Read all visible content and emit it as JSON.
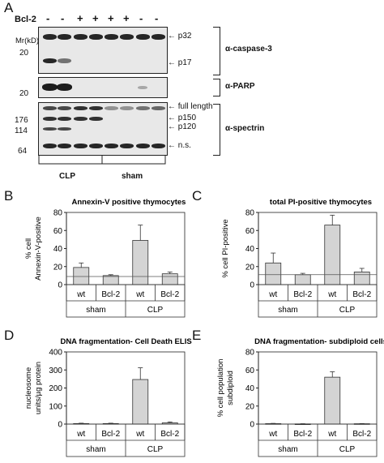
{
  "panelA": {
    "letter": "A",
    "bcl2_label": "Bcl-2",
    "lane_signs": [
      "-",
      "-",
      "+",
      "+",
      "+",
      "+",
      "-",
      "-"
    ],
    "mr_label": "Mr(kD)",
    "caspase": {
      "label": "α-caspase-3",
      "mw": [
        "20"
      ],
      "arrows": [
        "p32",
        "p17"
      ]
    },
    "parp": {
      "label": "α-PARP",
      "mw": [
        "20"
      ]
    },
    "spectrin": {
      "label": "α-spectrin",
      "mw": [
        "176",
        "114",
        "64"
      ],
      "arrows": [
        "full length",
        "p150",
        "p120",
        "n.s."
      ]
    },
    "groups": [
      "CLP",
      "sham"
    ]
  },
  "charts": [
    {
      "letter": "B",
      "chart_data": {
        "type": "bar",
        "title": "Annexin-V positive thymocytes",
        "ylabel": "% cell Annexin-V-positive",
        "ylabel_lines": [
          "% cell",
          "Annexin-V-positive"
        ],
        "categories": [
          "wt",
          "Bcl-2",
          "wt",
          "Bcl-2"
        ],
        "groups": [
          "sham",
          "CLP"
        ],
        "values": [
          19,
          10,
          49,
          12
        ],
        "errors": [
          5,
          1,
          17,
          2
        ],
        "baseline": 9,
        "ylim": [
          0,
          80
        ],
        "yticks": [
          "0",
          "20",
          "40",
          "60",
          "80"
        ]
      }
    },
    {
      "letter": "C",
      "chart_data": {
        "type": "bar",
        "title": "total PI-positive thymocytes",
        "ylabel": "% cell PI-positive",
        "ylabel_lines": [
          "% cell PI-positive"
        ],
        "categories": [
          "wt",
          "Bcl-2",
          "wt",
          "Bcl-2"
        ],
        "groups": [
          "sham",
          "CLP"
        ],
        "values": [
          24,
          11,
          66,
          14
        ],
        "errors": [
          11,
          1.5,
          11,
          4
        ],
        "baseline": 11,
        "ylim": [
          0,
          80
        ],
        "yticks": [
          "0",
          "20",
          "40",
          "60",
          "80"
        ]
      }
    },
    {
      "letter": "D",
      "chart_data": {
        "type": "bar",
        "title": "DNA fragmentation- Cell Death ELISA",
        "ylabel": "nucleosome units/µg protein",
        "ylabel_lines": [
          "nucleosome",
          "units/µg protein"
        ],
        "categories": [
          "wt",
          "Bcl-2",
          "wt",
          "Bcl-2"
        ],
        "groups": [
          "sham",
          "CLP"
        ],
        "values": [
          3,
          3,
          247,
          7
        ],
        "errors": [
          2,
          2,
          65,
          5
        ],
        "baseline": null,
        "ylim": [
          0,
          400
        ],
        "yticks": [
          "0",
          "100",
          "200",
          "300",
          "400"
        ]
      }
    },
    {
      "letter": "E",
      "chart_data": {
        "type": "bar",
        "title": "DNA fragmentation- subdiploid cells",
        "ylabel": "% cell population subdiploid",
        "ylabel_lines": [
          "% cell population",
          "subdiploid"
        ],
        "categories": [
          "wt",
          "Bcl-2",
          "wt",
          "Bcl-2"
        ],
        "groups": [
          "sham",
          "CLP"
        ],
        "values": [
          0.5,
          0.2,
          52,
          0.4
        ],
        "errors": [
          0.3,
          0.2,
          6,
          0.2
        ],
        "baseline": null,
        "ylim": [
          0,
          80
        ],
        "yticks": [
          "0",
          "20",
          "40",
          "60",
          "80"
        ]
      }
    }
  ]
}
